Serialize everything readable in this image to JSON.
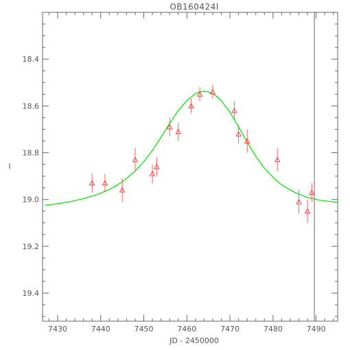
{
  "chart_data": {
    "type": "scatter",
    "title": "OB160424l",
    "xlabel": "JD - 2450000",
    "ylabel": "I",
    "xlim": [
      7426.5,
      7495
    ],
    "ylim": [
      19.52,
      18.2
    ],
    "y_inverted": true,
    "grid": false,
    "legend": "none",
    "x_major_ticks": [
      7430,
      7440,
      7450,
      7460,
      7470,
      7480,
      7490
    ],
    "x_tick_labels": [
      "7430",
      "7440",
      "7450",
      "7460",
      "7470",
      "7480",
      "7490"
    ],
    "y_major_ticks": [
      18.4,
      18.6,
      18.8,
      19.0,
      19.2,
      19.4
    ],
    "y_tick_labels": [
      "18.4",
      "18.6",
      "18.8",
      "19.0",
      "19.2",
      "19.4"
    ],
    "x_minor_step": 2,
    "y_minor_step": 0.05,
    "series": [
      {
        "kind": "data",
        "marker": "open-triangle",
        "color": "#ff3b3b",
        "x": [
          7438.0,
          7441.0,
          7445.0,
          7448.0,
          7452.0,
          7453.0,
          7456.0,
          7458.0,
          7461.0,
          7463.0,
          7466.0,
          7471.0,
          7472.0,
          7474.0,
          7481.0,
          7486.0,
          7488.0,
          7489.0
        ],
        "y": [
          18.93,
          18.93,
          18.96,
          18.83,
          18.89,
          18.86,
          18.69,
          18.71,
          18.6,
          18.55,
          18.54,
          18.62,
          18.72,
          18.75,
          18.83,
          19.01,
          19.05,
          18.97
        ],
        "yerr": [
          0.04,
          0.04,
          0.05,
          0.05,
          0.04,
          0.04,
          0.04,
          0.04,
          0.03,
          0.03,
          0.03,
          0.04,
          0.04,
          0.05,
          0.05,
          0.05,
          0.05,
          0.04
        ]
      },
      {
        "kind": "model",
        "line": "smooth",
        "color": "#00e000",
        "x": [
          7427,
          7430,
          7433,
          7436,
          7439,
          7442,
          7445,
          7448,
          7450,
          7452,
          7454,
          7456,
          7458,
          7460,
          7462,
          7463,
          7464,
          7465,
          7466,
          7467,
          7468,
          7470,
          7472,
          7474,
          7476,
          7478,
          7480,
          7482,
          7485,
          7488,
          7491,
          7495
        ],
        "y": [
          19.025,
          19.018,
          19.009,
          18.996,
          18.98,
          18.957,
          18.925,
          18.878,
          18.838,
          18.79,
          18.734,
          18.675,
          18.62,
          18.577,
          18.547,
          18.54,
          18.537,
          18.54,
          18.548,
          18.56,
          18.578,
          18.627,
          18.69,
          18.755,
          18.815,
          18.866,
          18.905,
          18.937,
          18.969,
          18.991,
          19.003,
          19.012
        ]
      }
    ],
    "vertical_lines": [
      {
        "x": 7489.6,
        "color": "#666666"
      }
    ]
  }
}
